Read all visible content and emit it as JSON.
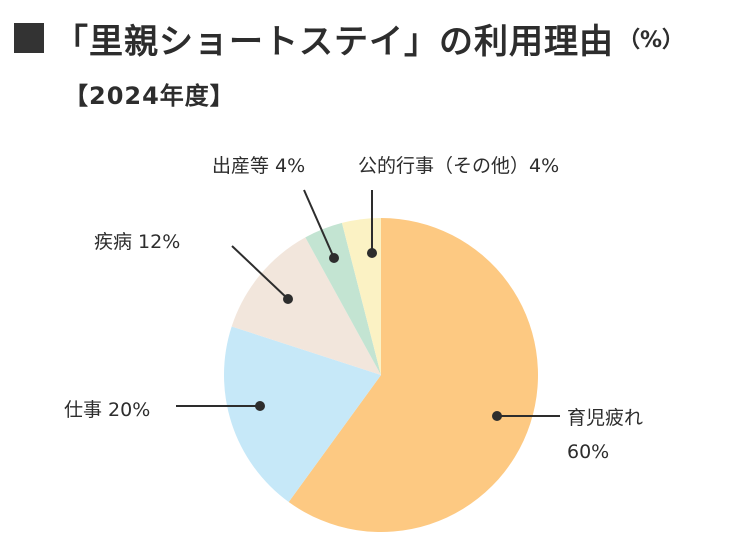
{
  "header": {
    "title": "「里親ショートステイ」の利用理由",
    "unit": "（%）",
    "subtitle": "【2024年度】"
  },
  "colors": {
    "title_square": "#333333",
    "slices": [
      "#fdc982",
      "#c6e8f8",
      "#f2e6dc",
      "#c3e4d2",
      "#fbf2c4"
    ]
  },
  "chart_data": {
    "type": "pie",
    "title": "「里親ショートステイ」の利用理由",
    "subtitle": "【2024年度】",
    "unit": "%",
    "start_angle_deg": 0,
    "direction": "clockwise",
    "slices": [
      {
        "label": "育児疲れ",
        "value": 60,
        "value_label": "60%",
        "color": "#fdc982"
      },
      {
        "label": "仕事",
        "value": 20,
        "value_label": "仕事 20%",
        "color": "#c6e8f8"
      },
      {
        "label": "疾病",
        "value": 12,
        "value_label": "疾病 12%",
        "color": "#f2e6dc"
      },
      {
        "label": "出産等",
        "value": 4,
        "value_label": "出産等 4%",
        "color": "#c3e4d2"
      },
      {
        "label": "公的行事（その他）",
        "value": 4,
        "value_label": "公的行事（その他）4%",
        "color": "#fbf2c4"
      }
    ]
  }
}
